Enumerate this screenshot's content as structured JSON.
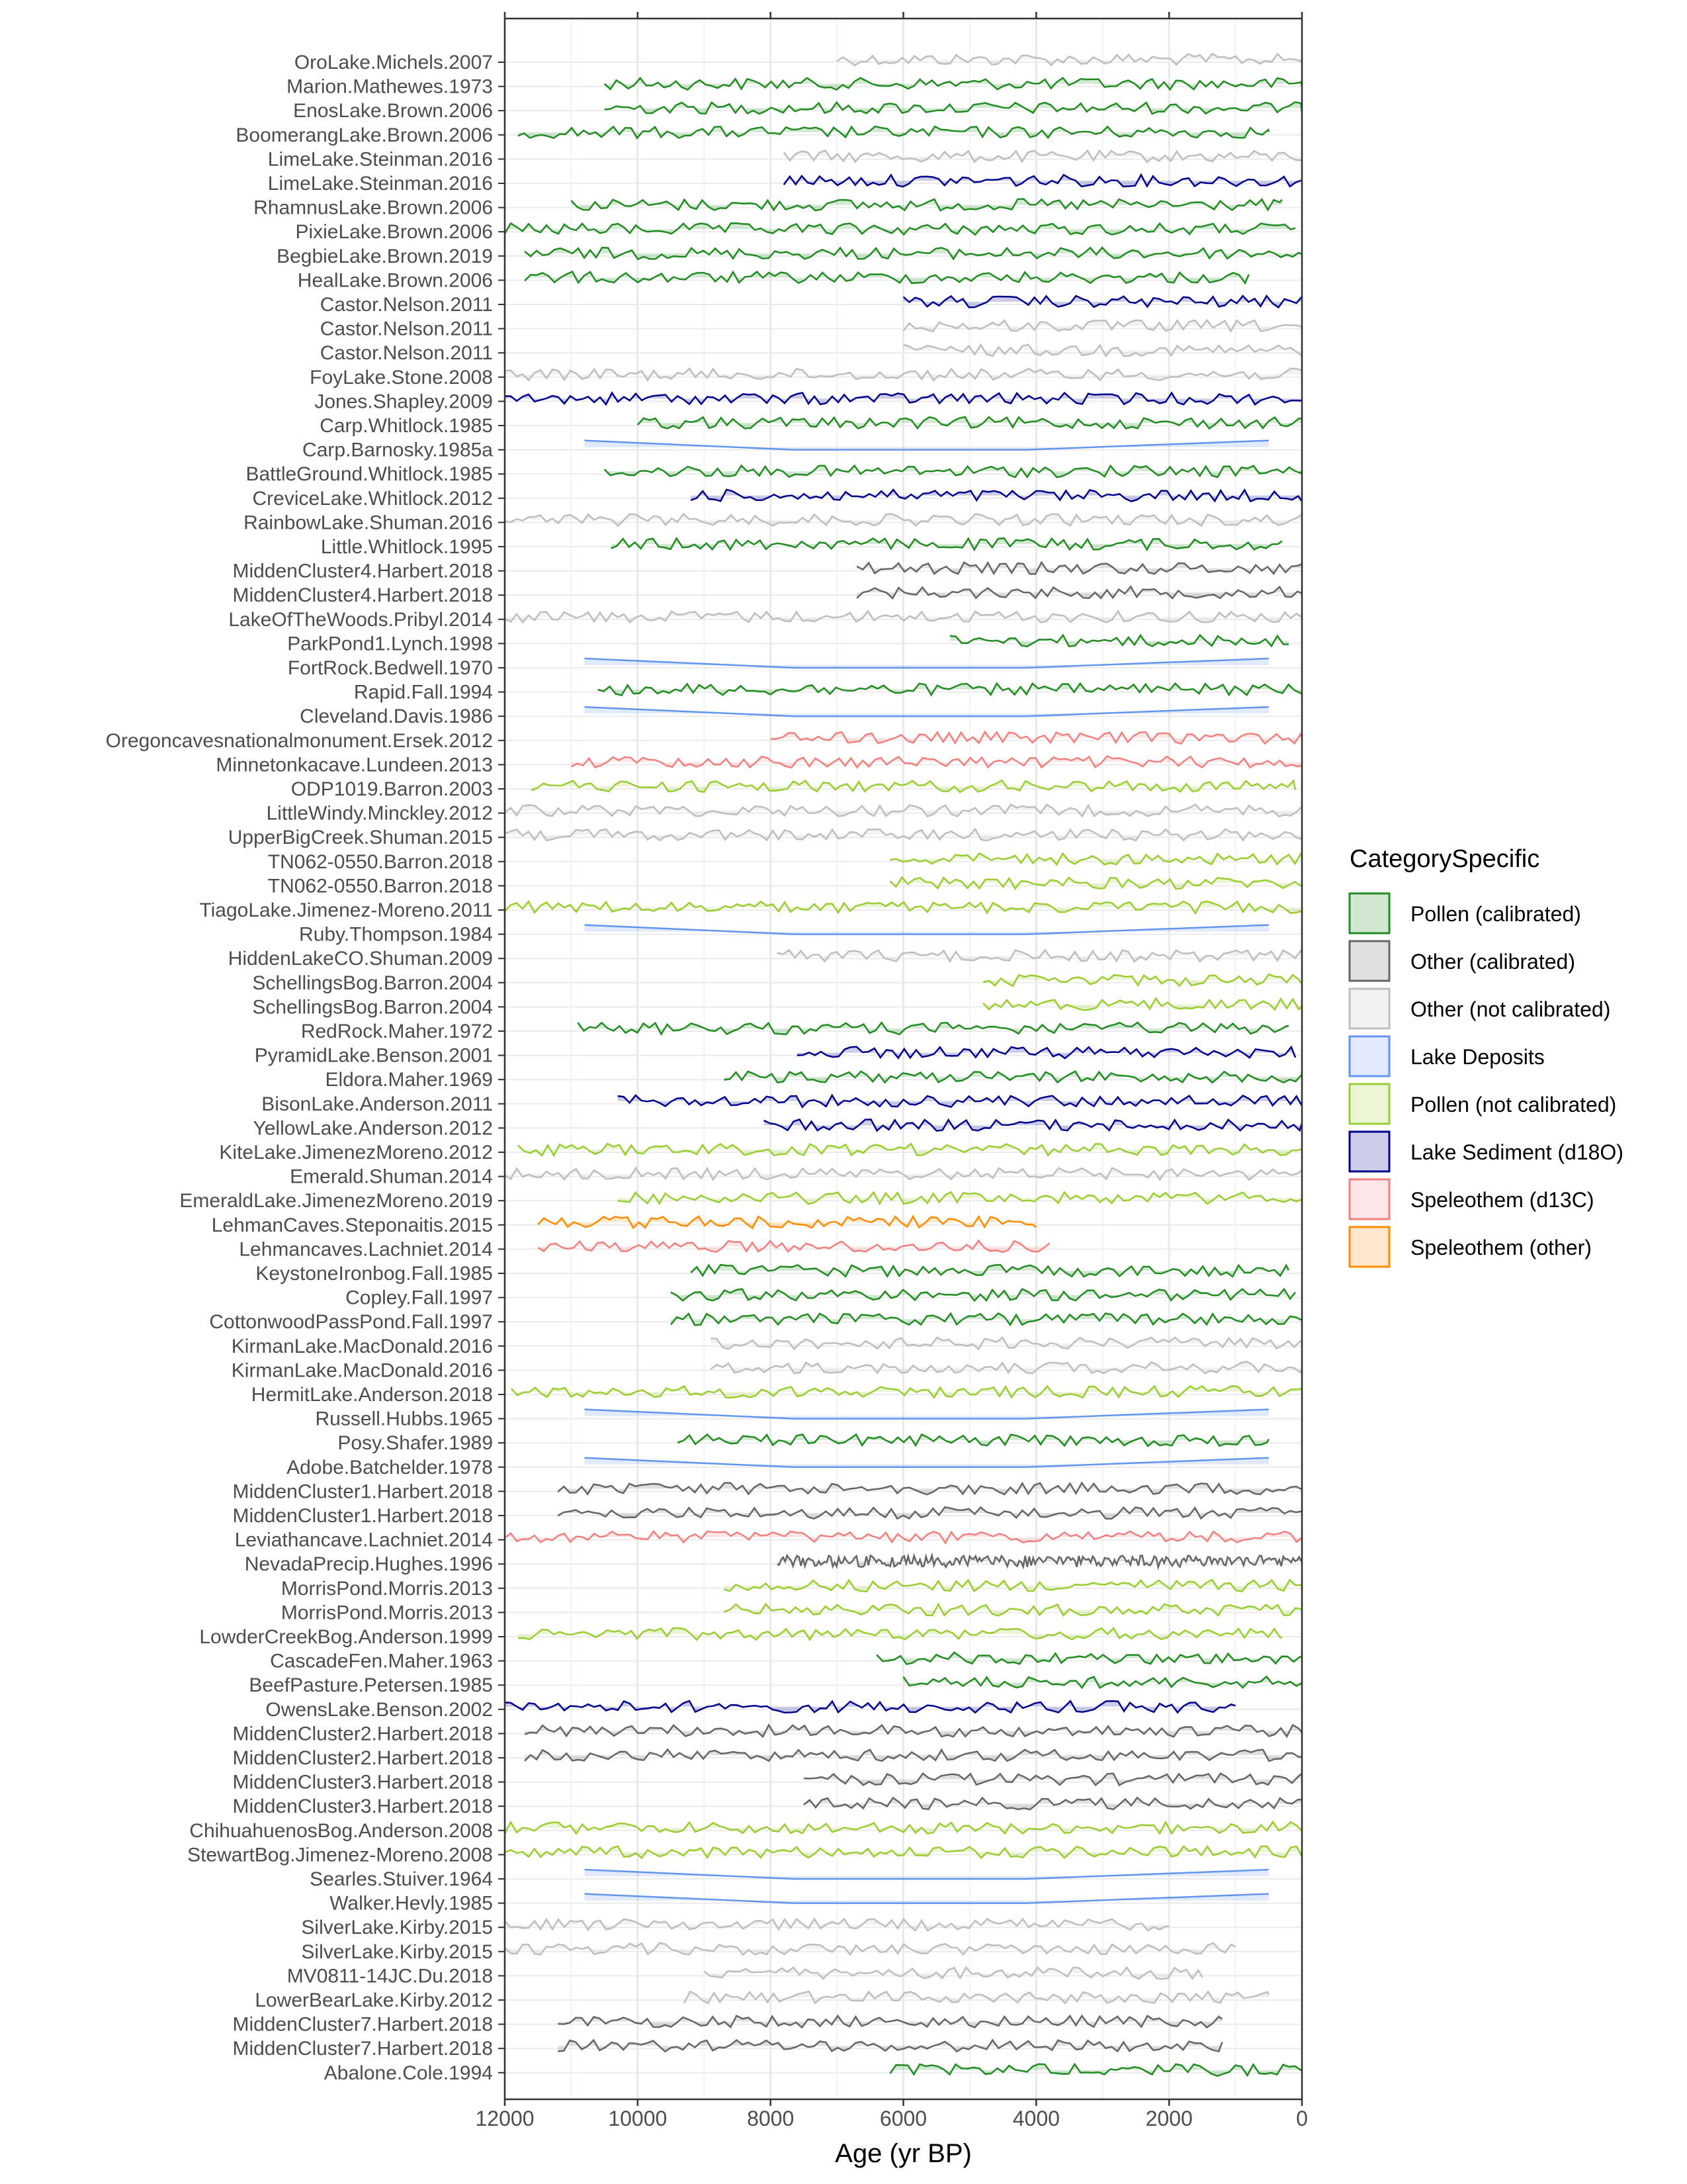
{
  "chart_data": {
    "type": "line",
    "xlabel": "Age (yr BP)",
    "xlim": [
      12000,
      0
    ],
    "x_reversed": true,
    "xticks": [
      12000,
      10000,
      8000,
      6000,
      4000,
      2000,
      0
    ],
    "xtick_labels": [
      "12000",
      "10000",
      "8000",
      "6000",
      "4000",
      "2000",
      "0"
    ],
    "grid": true,
    "legend": {
      "title": "CategorySpecific",
      "position": "right",
      "entries": [
        {
          "label": "Pollen (calibrated)",
          "color": "#228B22"
        },
        {
          "label": "Other (calibrated)",
          "color": "#666666"
        },
        {
          "label": "Other (not calibrated)",
          "color": "#BEBEBE"
        },
        {
          "label": "Lake Deposits",
          "color": "#6495ED"
        },
        {
          "label": "Pollen (not calibrated)",
          "color": "#9ACD32"
        },
        {
          "label": "Lake Sediment (d18O)",
          "color": "#00008B"
        },
        {
          "label": "Speleothem (d13C)",
          "color": "#F08080"
        },
        {
          "label": "Speleothem (other)",
          "color": "#FF8C00"
        }
      ]
    },
    "series": [
      {
        "name": "OroLake.Michels.2007",
        "category": 2,
        "start": 7000,
        "end": 0
      },
      {
        "name": "Marion.Mathewes.1973",
        "category": 0,
        "start": 10500,
        "end": 0
      },
      {
        "name": "EnosLake.Brown.2006",
        "category": 0,
        "start": 10500,
        "end": 0
      },
      {
        "name": "BoomerangLake.Brown.2006",
        "category": 0,
        "start": 11800,
        "end": 500
      },
      {
        "name": "LimeLake.Steinman.2016",
        "category": 2,
        "start": 7800,
        "end": 0
      },
      {
        "name": "LimeLake.Steinman.2016",
        "category": 5,
        "start": 7800,
        "end": 0
      },
      {
        "name": "RhamnusLake.Brown.2006",
        "category": 0,
        "start": 11000,
        "end": 300
      },
      {
        "name": "PixieLake.Brown.2006",
        "category": 0,
        "start": 12000,
        "end": 100
      },
      {
        "name": "BegbieLake.Brown.2019",
        "category": 0,
        "start": 11700,
        "end": 0
      },
      {
        "name": "HealLake.Brown.2006",
        "category": 0,
        "start": 11700,
        "end": 800
      },
      {
        "name": "Castor.Nelson.2011",
        "category": 5,
        "start": 6000,
        "end": 0
      },
      {
        "name": "Castor.Nelson.2011",
        "category": 2,
        "start": 6000,
        "end": 0
      },
      {
        "name": "Castor.Nelson.2011",
        "category": 2,
        "start": 6000,
        "end": 0
      },
      {
        "name": "FoyLake.Stone.2008",
        "category": 2,
        "start": 12000,
        "end": 0
      },
      {
        "name": "Jones.Shapley.2009",
        "category": 5,
        "start": 12000,
        "end": 0
      },
      {
        "name": "Carp.Whitlock.1985",
        "category": 0,
        "start": 10000,
        "end": 0
      },
      {
        "name": "Carp.Barnosky.1985a",
        "category": 3,
        "start": 10800,
        "end": 500
      },
      {
        "name": "BattleGround.Whitlock.1985",
        "category": 0,
        "start": 10500,
        "end": 0
      },
      {
        "name": "CreviceLake.Whitlock.2012",
        "category": 5,
        "start": 9200,
        "end": 0
      },
      {
        "name": "RainbowLake.Shuman.2016",
        "category": 2,
        "start": 12000,
        "end": 0
      },
      {
        "name": "Little.Whitlock.1995",
        "category": 0,
        "start": 10400,
        "end": 300
      },
      {
        "name": "MiddenCluster4.Harbert.2018",
        "category": 1,
        "start": 6700,
        "end": 0
      },
      {
        "name": "MiddenCluster4.Harbert.2018",
        "category": 1,
        "start": 6700,
        "end": 0
      },
      {
        "name": "LakeOfTheWoods.Pribyl.2014",
        "category": 2,
        "start": 12000,
        "end": 0
      },
      {
        "name": "ParkPond1.Lynch.1998",
        "category": 0,
        "start": 5300,
        "end": 200
      },
      {
        "name": "FortRock.Bedwell.1970",
        "category": 3,
        "start": 10800,
        "end": 500
      },
      {
        "name": "Rapid.Fall.1994",
        "category": 0,
        "start": 10600,
        "end": 0
      },
      {
        "name": "Cleveland.Davis.1986",
        "category": 3,
        "start": 10800,
        "end": 500
      },
      {
        "name": "Oregoncavesnationalmonument.Ersek.2012",
        "category": 6,
        "start": 8000,
        "end": 0
      },
      {
        "name": "Minnetonkacave.Lundeen.2013",
        "category": 6,
        "start": 11000,
        "end": 0
      },
      {
        "name": "ODP1019.Barron.2003",
        "category": 4,
        "start": 11600,
        "end": 100
      },
      {
        "name": "LittleWindy.Minckley.2012",
        "category": 2,
        "start": 12000,
        "end": 0
      },
      {
        "name": "UpperBigCreek.Shuman.2015",
        "category": 2,
        "start": 12000,
        "end": 0
      },
      {
        "name": "TN062-0550.Barron.2018",
        "category": 4,
        "start": 6200,
        "end": 0
      },
      {
        "name": "TN062-0550.Barron.2018",
        "category": 4,
        "start": 6200,
        "end": 0
      },
      {
        "name": "TiagoLake.Jimenez-Moreno.2011",
        "category": 4,
        "start": 12000,
        "end": 0
      },
      {
        "name": "Ruby.Thompson.1984",
        "category": 3,
        "start": 10800,
        "end": 500
      },
      {
        "name": "HiddenLakeCO.Shuman.2009",
        "category": 2,
        "start": 7900,
        "end": 0
      },
      {
        "name": "SchellingsBog.Barron.2004",
        "category": 4,
        "start": 4800,
        "end": 0
      },
      {
        "name": "SchellingsBog.Barron.2004",
        "category": 4,
        "start": 4800,
        "end": 0
      },
      {
        "name": "RedRock.Maher.1972",
        "category": 0,
        "start": 10900,
        "end": 200
      },
      {
        "name": "PyramidLake.Benson.2001",
        "category": 5,
        "start": 7600,
        "end": 100
      },
      {
        "name": "Eldora.Maher.1969",
        "category": 0,
        "start": 8700,
        "end": 0
      },
      {
        "name": "BisonLake.Anderson.2011",
        "category": 5,
        "start": 10300,
        "end": 0
      },
      {
        "name": "YellowLake.Anderson.2012",
        "category": 5,
        "start": 8100,
        "end": 0
      },
      {
        "name": "KiteLake.JimenezMoreno.2012",
        "category": 4,
        "start": 11800,
        "end": 0
      },
      {
        "name": "Emerald.Shuman.2014",
        "category": 2,
        "start": 12000,
        "end": 0
      },
      {
        "name": "EmeraldLake.JimenezMoreno.2019",
        "category": 4,
        "start": 10300,
        "end": 0
      },
      {
        "name": "LehmanCaves.Steponaitis.2015",
        "category": 7,
        "start": 11500,
        "end": 4000
      },
      {
        "name": "Lehmancaves.Lachniet.2014",
        "category": 6,
        "start": 11500,
        "end": 3800
      },
      {
        "name": "KeystoneIronbog.Fall.1985",
        "category": 0,
        "start": 9200,
        "end": 200
      },
      {
        "name": "Copley.Fall.1997",
        "category": 0,
        "start": 9500,
        "end": 100
      },
      {
        "name": "CottonwoodPassPond.Fall.1997",
        "category": 0,
        "start": 9500,
        "end": 0
      },
      {
        "name": "KirmanLake.MacDonald.2016",
        "category": 2,
        "start": 8900,
        "end": 0
      },
      {
        "name": "KirmanLake.MacDonald.2016",
        "category": 2,
        "start": 8900,
        "end": 0
      },
      {
        "name": "HermitLake.Anderson.2018",
        "category": 4,
        "start": 11900,
        "end": 0
      },
      {
        "name": "Russell.Hubbs.1965",
        "category": 3,
        "start": 10800,
        "end": 500
      },
      {
        "name": "Posy.Shafer.1989",
        "category": 0,
        "start": 9400,
        "end": 500
      },
      {
        "name": "Adobe.Batchelder.1978",
        "category": 3,
        "start": 10800,
        "end": 500
      },
      {
        "name": "MiddenCluster1.Harbert.2018",
        "category": 1,
        "start": 11200,
        "end": 0
      },
      {
        "name": "MiddenCluster1.Harbert.2018",
        "category": 1,
        "start": 11200,
        "end": 0
      },
      {
        "name": "Leviathancave.Lachniet.2014",
        "category": 6,
        "start": 12000,
        "end": 0
      },
      {
        "name": "NevadaPrecip.Hughes.1996",
        "category": 1,
        "start": 7900,
        "end": 0
      },
      {
        "name": "MorrisPond.Morris.2013",
        "category": 4,
        "start": 8700,
        "end": 0
      },
      {
        "name": "MorrisPond.Morris.2013",
        "category": 4,
        "start": 8700,
        "end": 0
      },
      {
        "name": "LowderCreekBog.Anderson.1999",
        "category": 4,
        "start": 11800,
        "end": 300
      },
      {
        "name": "CascadeFen.Maher.1963",
        "category": 0,
        "start": 6400,
        "end": 0
      },
      {
        "name": "BeefPasture.Petersen.1985",
        "category": 0,
        "start": 6000,
        "end": 0
      },
      {
        "name": "OwensLake.Benson.2002",
        "category": 5,
        "start": 12000,
        "end": 1000
      },
      {
        "name": "MiddenCluster2.Harbert.2018",
        "category": 1,
        "start": 11700,
        "end": 0
      },
      {
        "name": "MiddenCluster2.Harbert.2018",
        "category": 1,
        "start": 11700,
        "end": 0
      },
      {
        "name": "MiddenCluster3.Harbert.2018",
        "category": 1,
        "start": 7500,
        "end": 0
      },
      {
        "name": "MiddenCluster3.Harbert.2018",
        "category": 1,
        "start": 7500,
        "end": 0
      },
      {
        "name": "ChihuahuenosBog.Anderson.2008",
        "category": 4,
        "start": 12000,
        "end": 0
      },
      {
        "name": "StewartBog.Jimenez-Moreno.2008",
        "category": 4,
        "start": 12000,
        "end": 0
      },
      {
        "name": "Searles.Stuiver.1964",
        "category": 3,
        "start": 10800,
        "end": 500
      },
      {
        "name": "Walker.Hevly.1985",
        "category": 3,
        "start": 10800,
        "end": 500
      },
      {
        "name": "SilverLake.Kirby.2015",
        "category": 2,
        "start": 12000,
        "end": 2000
      },
      {
        "name": "SilverLake.Kirby.2015",
        "category": 2,
        "start": 12000,
        "end": 1000
      },
      {
        "name": "MV0811-14JC.Du.2018",
        "category": 2,
        "start": 9000,
        "end": 1500
      },
      {
        "name": "LowerBearLake.Kirby.2012",
        "category": 2,
        "start": 9300,
        "end": 500
      },
      {
        "name": "MiddenCluster7.Harbert.2018",
        "category": 1,
        "start": 11200,
        "end": 1200
      },
      {
        "name": "MiddenCluster7.Harbert.2018",
        "category": 1,
        "start": 11200,
        "end": 1200
      },
      {
        "name": "Abalone.Cole.1994",
        "category": 0,
        "start": 6200,
        "end": 0
      }
    ]
  }
}
